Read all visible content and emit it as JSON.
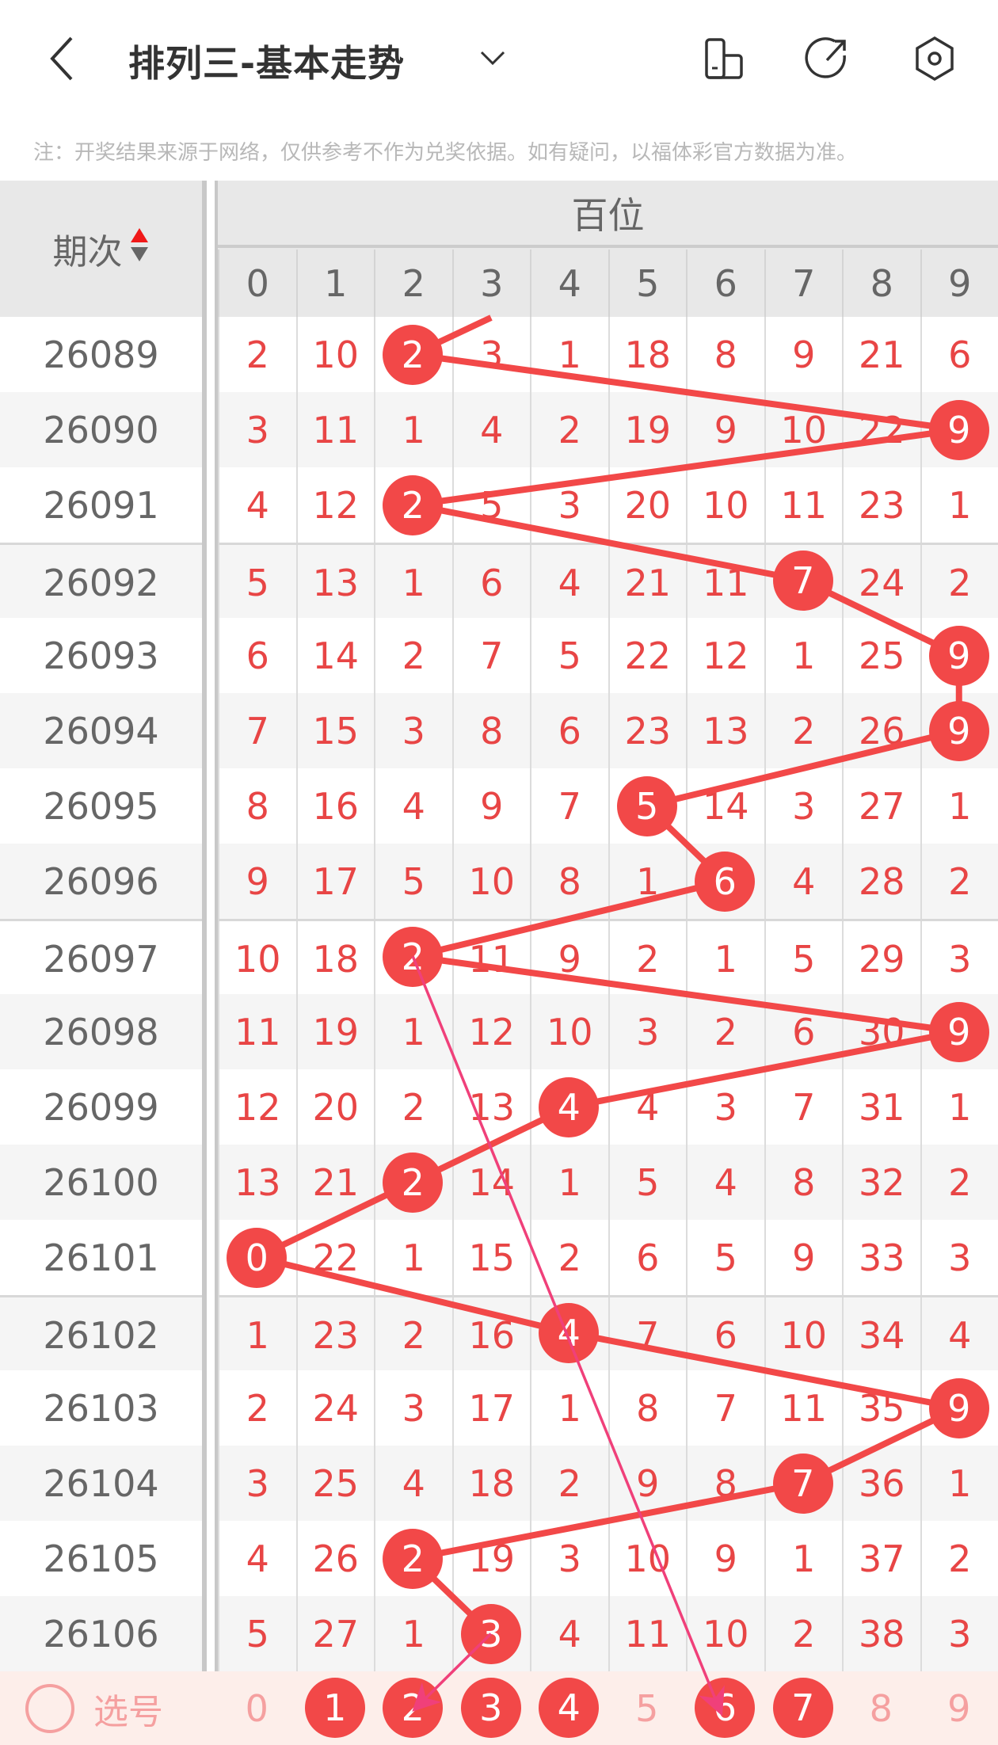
{
  "header": {
    "title": "排列三-基本走势",
    "icons": [
      "back-icon",
      "chevron-down-icon",
      "device-icon",
      "share-icon",
      "settings-icon"
    ]
  },
  "note": "注：开奖结果来源于网络，仅供参考不作为兑奖依据。如有疑问，以福体彩官方数据为准。",
  "table": {
    "period_header": "期次",
    "group_header": "百位",
    "digits": [
      "0",
      "1",
      "2",
      "3",
      "4",
      "5",
      "6",
      "7",
      "8",
      "9"
    ],
    "rows": [
      {
        "period": "26089",
        "hit": 2,
        "cells": [
          "2",
          "10",
          "2",
          "3",
          "1",
          "18",
          "8",
          "9",
          "21",
          "6"
        ]
      },
      {
        "period": "26090",
        "hit": 9,
        "cells": [
          "3",
          "11",
          "1",
          "4",
          "2",
          "19",
          "9",
          "10",
          "22",
          "9"
        ]
      },
      {
        "period": "26091",
        "hit": 2,
        "cells": [
          "4",
          "12",
          "2",
          "5",
          "3",
          "20",
          "10",
          "11",
          "23",
          "1"
        ]
      },
      {
        "period": "26092",
        "hit": 7,
        "cells": [
          "5",
          "13",
          "1",
          "6",
          "4",
          "21",
          "11",
          "7",
          "24",
          "2"
        ]
      },
      {
        "period": "26093",
        "hit": 9,
        "cells": [
          "6",
          "14",
          "2",
          "7",
          "5",
          "22",
          "12",
          "1",
          "25",
          "9"
        ]
      },
      {
        "period": "26094",
        "hit": 9,
        "cells": [
          "7",
          "15",
          "3",
          "8",
          "6",
          "23",
          "13",
          "2",
          "26",
          "9"
        ]
      },
      {
        "period": "26095",
        "hit": 5,
        "cells": [
          "8",
          "16",
          "4",
          "9",
          "7",
          "5",
          "14",
          "3",
          "27",
          "1"
        ]
      },
      {
        "period": "26096",
        "hit": 6,
        "cells": [
          "9",
          "17",
          "5",
          "10",
          "8",
          "1",
          "6",
          "4",
          "28",
          "2"
        ]
      },
      {
        "period": "26097",
        "hit": 2,
        "cells": [
          "10",
          "18",
          "2",
          "11",
          "9",
          "2",
          "1",
          "5",
          "29",
          "3"
        ]
      },
      {
        "period": "26098",
        "hit": 9,
        "cells": [
          "11",
          "19",
          "1",
          "12",
          "10",
          "3",
          "2",
          "6",
          "30",
          "9"
        ]
      },
      {
        "period": "26099",
        "hit": 4,
        "cells": [
          "12",
          "20",
          "2",
          "13",
          "4",
          "4",
          "3",
          "7",
          "31",
          "1"
        ]
      },
      {
        "period": "26100",
        "hit": 2,
        "cells": [
          "13",
          "21",
          "2",
          "14",
          "1",
          "5",
          "4",
          "8",
          "32",
          "2"
        ]
      },
      {
        "period": "26101",
        "hit": 0,
        "cells": [
          "0",
          "22",
          "1",
          "15",
          "2",
          "6",
          "5",
          "9",
          "33",
          "3"
        ]
      },
      {
        "period": "26102",
        "hit": 4,
        "cells": [
          "1",
          "23",
          "2",
          "16",
          "4",
          "7",
          "6",
          "10",
          "34",
          "4"
        ]
      },
      {
        "period": "26103",
        "hit": 9,
        "cells": [
          "2",
          "24",
          "3",
          "17",
          "1",
          "8",
          "7",
          "11",
          "35",
          "9"
        ]
      },
      {
        "period": "26104",
        "hit": 7,
        "cells": [
          "3",
          "25",
          "4",
          "18",
          "2",
          "9",
          "8",
          "7",
          "36",
          "1"
        ]
      },
      {
        "period": "26105",
        "hit": 2,
        "cells": [
          "4",
          "26",
          "2",
          "19",
          "3",
          "10",
          "9",
          "1",
          "37",
          "2"
        ]
      },
      {
        "period": "26106",
        "hit": 3,
        "cells": [
          "5",
          "27",
          "1",
          "3",
          "4",
          "11",
          "10",
          "2",
          "38",
          "3"
        ]
      }
    ]
  },
  "select_row": {
    "label": "选号",
    "numbers": [
      "0",
      "1",
      "2",
      "3",
      "4",
      "5",
      "6",
      "7",
      "8",
      "9"
    ],
    "selected": [
      1,
      2,
      3,
      4,
      6,
      7
    ]
  },
  "colors": {
    "hit": "#f24848",
    "miss_text": "#e84545",
    "line": "#f24848",
    "arrow": "#f0407a",
    "select_bg": "#fdeeea"
  }
}
